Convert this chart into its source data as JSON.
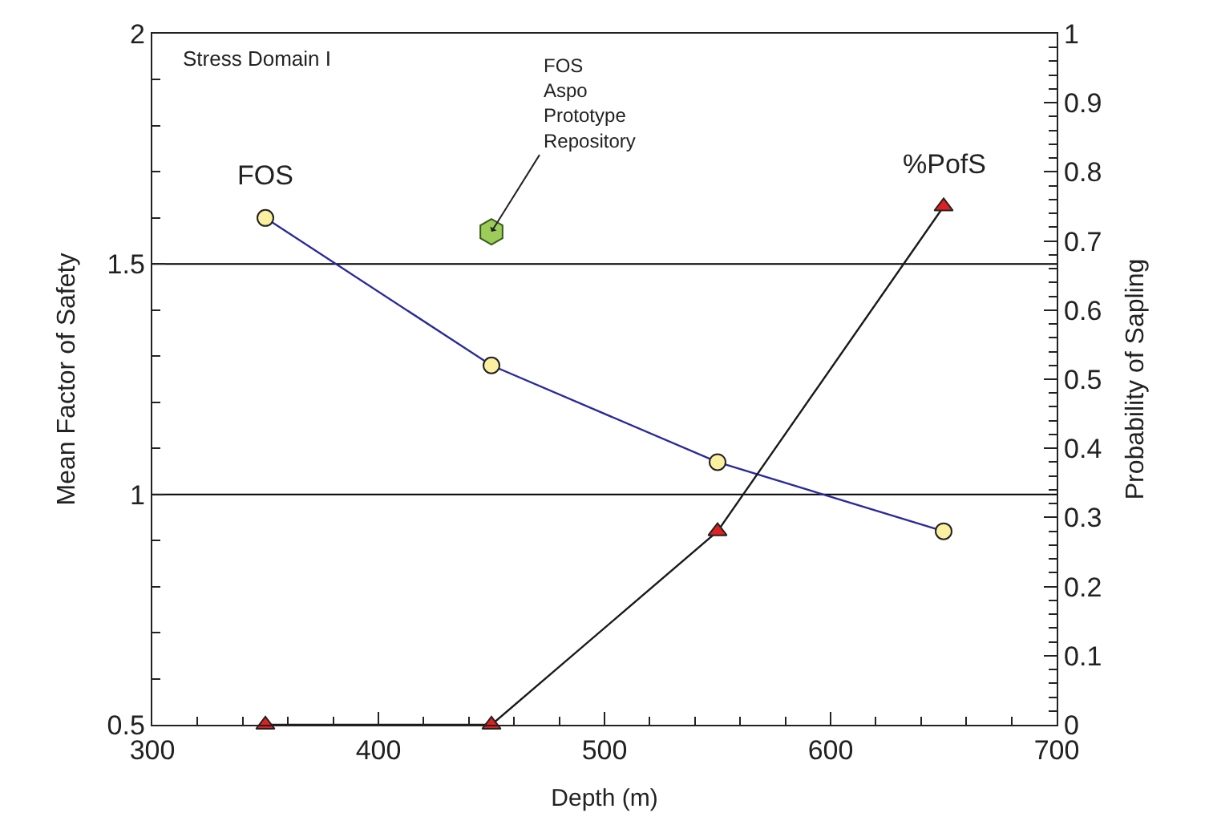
{
  "chart_data": {
    "type": "line",
    "title": "Stress Domain I",
    "xlabel": "Depth (m)",
    "ylabel": "Mean Factor of Safety",
    "y2label": "Probability of Sapling",
    "x": [
      350,
      450,
      550,
      650
    ],
    "series": [
      {
        "name": "FOS",
        "color": "#2a2a9a",
        "colors": [
          "#fbefa0",
          "#fbefa0",
          "#fbefa0",
          "#fbefa0"
        ],
        "marker": "circle",
        "values": [
          1.6,
          1.28,
          1.07,
          0.92
        ]
      },
      {
        "name": "%PofS",
        "color": "#1a1a1a",
        "colors": [
          "#e02020",
          "#e02020",
          "#e02020",
          "#e02020"
        ],
        "marker": "triangle",
        "axis": "y2",
        "values": [
          0,
          0,
          0.28,
          0.75
        ]
      },
      {
        "type": "scatter",
        "x": [
          450
        ],
        "color": "#9ccc5a",
        "values": [
          1.57
        ]
      }
    ],
    "annotations": [
      {
        "text": "FOS\nAspo\nPrototype\nRepository",
        "x": 450,
        "y": 1.57
      }
    ],
    "ref_lines": [
      {
        "axis": "y",
        "value": 1.5,
        "color": "#000000"
      },
      {
        "axis": "y",
        "value": 1,
        "color": "#000000"
      }
    ],
    "xlim": [
      300,
      700
    ],
    "xticks": [
      300,
      400,
      500,
      600,
      700
    ],
    "ylim": [
      0.5,
      2
    ],
    "yticks": [
      0.5,
      1,
      1.5,
      2
    ],
    "y2lim": [
      0,
      1
    ],
    "y2ticks": [
      0,
      0.1,
      0.2,
      0.3,
      0.4,
      0.5,
      0.6,
      0.7,
      0.8,
      0.9,
      1
    ],
    "grid": false,
    "legend": false
  }
}
